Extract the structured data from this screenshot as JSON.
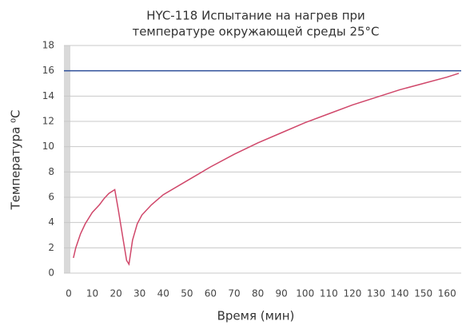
{
  "chart_data": {
    "type": "line",
    "title": [
      "HYC-118 Испытание на нагрев при",
      "температуре окружающей среды 25°C"
    ],
    "xlabel": "Время (мин)",
    "ylabel": "Температура ⁰C",
    "xlim": [
      -2,
      166
    ],
    "ylim": [
      0,
      18
    ],
    "xticks": [
      0,
      10,
      20,
      30,
      40,
      50,
      60,
      70,
      80,
      90,
      100,
      110,
      120,
      130,
      140,
      150,
      160
    ],
    "yticks": [
      0,
      2,
      4,
      6,
      8,
      10,
      12,
      14,
      16,
      18
    ],
    "grid": true,
    "series": [
      {
        "color": "#2e4f9a",
        "x": [
          -2,
          166
        ],
        "values": [
          16,
          16
        ]
      },
      {
        "color": "#d0476a",
        "x": [
          2,
          3,
          5,
          7,
          10,
          13,
          15,
          17,
          19.5,
          21,
          23,
          24.5,
          25.5,
          27,
          29,
          31,
          35,
          40,
          50,
          60,
          70,
          80,
          90,
          100,
          110,
          120,
          130,
          140,
          150,
          160,
          165
        ],
        "values": [
          1.2,
          2.0,
          3.1,
          3.9,
          4.8,
          5.4,
          5.9,
          6.3,
          6.6,
          5.0,
          2.7,
          1.0,
          0.7,
          2.6,
          3.9,
          4.6,
          5.4,
          6.2,
          7.3,
          8.4,
          9.4,
          10.3,
          11.1,
          11.9,
          12.6,
          13.3,
          13.9,
          14.5,
          15.0,
          15.5,
          15.8
        ]
      }
    ]
  }
}
